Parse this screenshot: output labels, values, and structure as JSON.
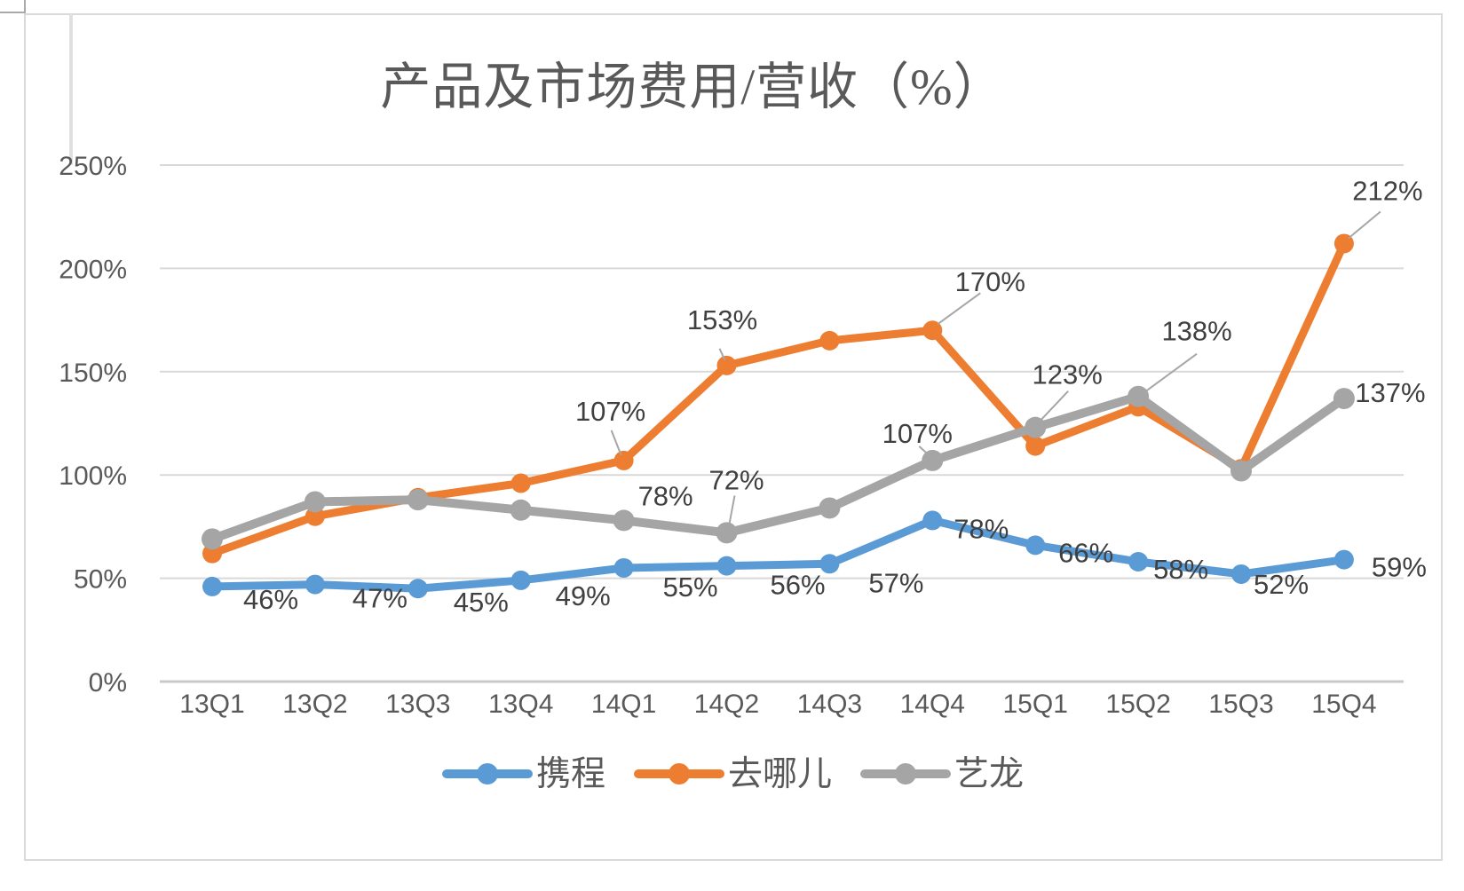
{
  "page": {
    "background": "#FFFFFF"
  },
  "chart_data": {
    "type": "line",
    "title": "产品及市场费用/营收（%）",
    "categories": [
      "13Q1",
      "13Q2",
      "13Q3",
      "13Q4",
      "14Q1",
      "14Q2",
      "14Q3",
      "14Q4",
      "15Q1",
      "15Q2",
      "15Q3",
      "15Q4"
    ],
    "series": [
      {
        "name": "携程",
        "color": "#5B9BD5",
        "values": [
          46,
          47,
          45,
          49,
          55,
          56,
          57,
          78,
          66,
          58,
          52,
          59
        ],
        "point_labels": [
          "46%",
          "47%",
          "45%",
          "49%",
          "55%",
          "56%",
          "57%",
          "78%",
          "66%",
          "58%",
          "52%",
          "59%"
        ]
      },
      {
        "name": "去哪儿",
        "color": "#ED7D31",
        "values": [
          62,
          80,
          89,
          96,
          107,
          153,
          165,
          170,
          114,
          133,
          103,
          212
        ],
        "point_labels": [
          null,
          null,
          null,
          null,
          "107%",
          "153%",
          null,
          "170%",
          null,
          null,
          null,
          "212%"
        ]
      },
      {
        "name": "艺龙",
        "color": "#A5A5A5",
        "values": [
          69,
          87,
          88,
          83,
          78,
          72,
          84,
          107,
          123,
          138,
          102,
          137
        ],
        "point_labels": [
          null,
          null,
          null,
          null,
          "78%",
          "72%",
          null,
          "107%",
          "123%",
          "138%",
          null,
          "137%"
        ]
      }
    ],
    "y_axis": {
      "ticks": [
        "0%",
        "50%",
        "100%",
        "150%",
        "200%",
        "250%"
      ],
      "min": 0,
      "max": 250,
      "step": 50
    },
    "x_axis": {
      "label_row_visible": true
    },
    "grid": true,
    "legend_position": "bottom",
    "legend": [
      "携程",
      "去哪儿",
      "艺龙"
    ]
  },
  "colors": {
    "title_text": "#595959",
    "axis_text": "#595959",
    "data_label_text": "#404040",
    "gridline": "#D9D9D9",
    "axis_line": "#C9C9C9",
    "leader_line": "#A6A6A6",
    "frame_border": "#D9D9D9"
  }
}
